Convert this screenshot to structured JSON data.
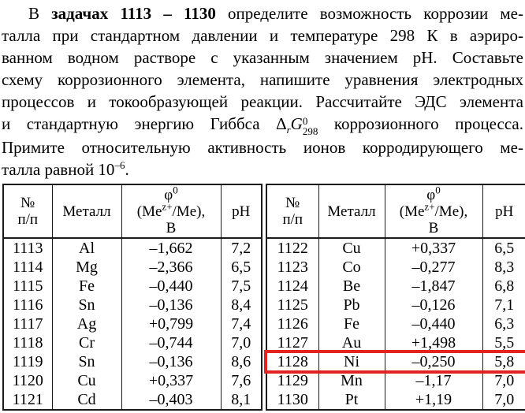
{
  "colors": {
    "highlight_red": "#e32320",
    "text": "#000000",
    "table_border": "#1a1a1a"
  },
  "paragraph": {
    "line1_pre": "В",
    "line1_bold": "задачах 1113 – 1130",
    "line1_rest": "определите возможность коррозии ме-",
    "line2": "талла при стандартном давлении и температуре 298 К в аэриро-",
    "line3": "ванном водном растворе с указанным значением pH. Составьте",
    "line4": "схему коррозионного элемента, напишите уравнения электродных",
    "line5": "процессов и токообразующей реакции. Рассчитайте ЭДС элемента",
    "line6_pre": "и стандартную энергию Гиббса",
    "formula": {
      "delta": "Δ",
      "sub_r": "r",
      "G": "G",
      "sup": "0",
      "sub": "298"
    },
    "line6_post": "коррозионного процесса.",
    "line7": "Примите относительную активность ионов корродирующего ме-",
    "line8_pre": "талла равной 10",
    "line8_sup": "–6",
    "line8_post": "."
  },
  "table_header": {
    "num_line1": "№",
    "num_line2": "п/п",
    "metal": "Металл",
    "phi_symbol": "φ",
    "phi_sup": "0",
    "me_pre": "(Me",
    "me_sup": "z+",
    "me_post": "/Me),",
    "unit": "В",
    "ph": "pH"
  },
  "tables": [
    {
      "name": "problems-1113-1121",
      "rows": [
        [
          "1113",
          "Al",
          "–1,662",
          "7,2"
        ],
        [
          "1114",
          "Mg",
          "–2,366",
          "6,5"
        ],
        [
          "1115",
          "Fe",
          "–0,440",
          "7,5"
        ],
        [
          "1116",
          "Sn",
          "–0,136",
          "8,4"
        ],
        [
          "1117",
          "Ag",
          "+0,799",
          "7,4"
        ],
        [
          "1118",
          "Cr",
          "–0,744",
          "7,0"
        ],
        [
          "1119",
          "Sn",
          "–0,136",
          "8,6"
        ],
        [
          "1120",
          "Cu",
          "+0,337",
          "7,6"
        ],
        [
          "1121",
          "Cd",
          "–0,403",
          "8,1"
        ]
      ]
    },
    {
      "name": "problems-1122-1130",
      "highlighted_row": "1128",
      "rows": [
        [
          "1122",
          "Cu",
          "+0,337",
          "6,5"
        ],
        [
          "1123",
          "Co",
          "–0,277",
          "8,3"
        ],
        [
          "1124",
          "Be",
          "–1,847",
          "6,8"
        ],
        [
          "1125",
          "Pb",
          "–0,126",
          "7,1"
        ],
        [
          "1126",
          "Fe",
          "–0,440",
          "6,3"
        ],
        [
          "1127",
          "Au",
          "+1,498",
          "5,5"
        ],
        [
          "1128",
          "Ni",
          "–0,250",
          "5,8"
        ],
        [
          "1129",
          "Mn",
          "–1,17",
          "7,0"
        ],
        [
          "1130",
          "Pt",
          "+1,19",
          "7,0"
        ]
      ]
    }
  ]
}
